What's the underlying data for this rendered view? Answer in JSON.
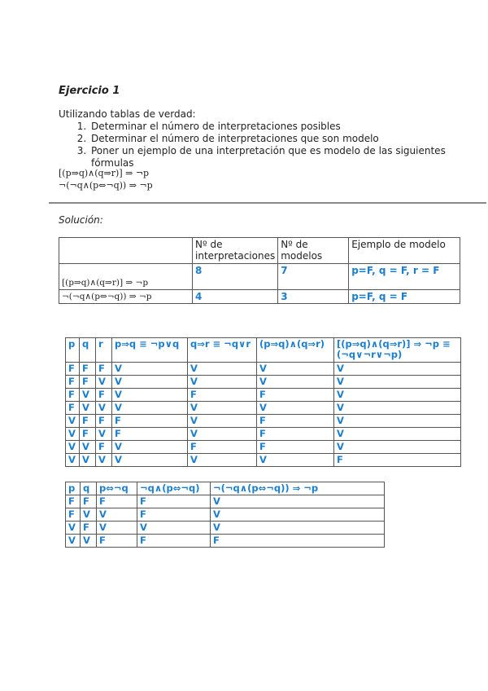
{
  "title": "Ejercicio 1",
  "intro": "Utilizando tablas de verdad:",
  "steps": [
    "Determinar el número de interpretaciones posibles",
    "Determinar el número de interpretaciones que son modelo",
    "Poner un ejemplo de una interpretación que es modelo de las siguientes fórmulas"
  ],
  "formulas": [
    "[(p⇒q)∧(q⇒r)] ⇒ ¬p",
    "¬(¬q∧(p⇔¬q)) ⇒ ¬p"
  ],
  "solution_label": "Solución:",
  "summary": {
    "headers": [
      "",
      "Nº de interpretaciones",
      "Nº de modelos",
      "Ejemplo de modelo"
    ],
    "rows": [
      [
        "[(p⇒q)∧(q⇒r)] ⇒ ¬p",
        "8",
        "7",
        "p=F, q = F, r = F"
      ],
      [
        "¬(¬q∧(p⇔¬q)) ⇒ ¬p",
        "4",
        "3",
        "p=F, q = F"
      ]
    ]
  },
  "truth1": {
    "headers": [
      "p",
      "q",
      "r",
      "p⇒q ≡ ¬p∨q",
      "q⇒r ≡ ¬q∨r",
      "(p⇒q)∧(q⇒r)",
      "[(p⇒q)∧(q⇒r)] ⇒ ¬p ≡ (¬q∨¬r∨¬p)"
    ],
    "rows": [
      [
        "F",
        "F",
        "F",
        "V",
        "V",
        "V",
        "V"
      ],
      [
        "F",
        "F",
        "V",
        "V",
        "V",
        "V",
        "V"
      ],
      [
        "F",
        "V",
        "F",
        "V",
        "F",
        "F",
        "V"
      ],
      [
        "F",
        "V",
        "V",
        "V",
        "V",
        "V",
        "V"
      ],
      [
        "V",
        "F",
        "F",
        "F",
        "V",
        "F",
        "V"
      ],
      [
        "V",
        "F",
        "V",
        "F",
        "V",
        "F",
        "V"
      ],
      [
        "V",
        "V",
        "F",
        "V",
        "F",
        "F",
        "V"
      ],
      [
        "V",
        "V",
        "V",
        "V",
        "V",
        "V",
        "F"
      ]
    ]
  },
  "truth2": {
    "headers": [
      "p",
      "q",
      "p⇔¬q",
      "¬q∧(p⇔¬q)",
      "¬(¬q∧(p⇔¬q)) ⇒ ¬p"
    ],
    "rows": [
      [
        "F",
        "F",
        "F",
        "F",
        "V"
      ],
      [
        "F",
        "V",
        "V",
        "F",
        "V"
      ],
      [
        "V",
        "F",
        "V",
        "V",
        "V"
      ],
      [
        "V",
        "V",
        "F",
        "F",
        "F"
      ]
    ]
  },
  "colors": {
    "accent": "#1a7fd0"
  }
}
